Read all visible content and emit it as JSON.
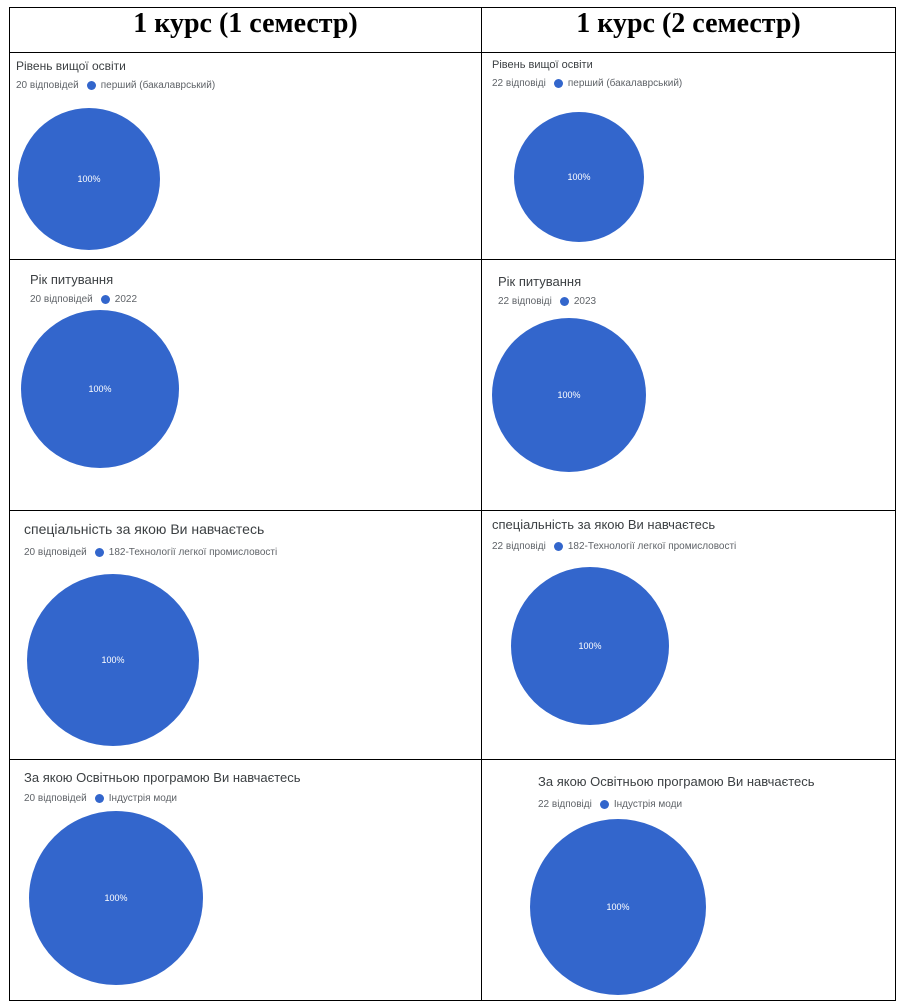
{
  "headers": [
    "1 курс (1 семестр)",
    "1 курс (2 семестр)"
  ],
  "colors": {
    "slice": "#3366cc",
    "text": "#3c4043",
    "muted": "#5f6368"
  },
  "chart_data": [
    {
      "type": "pie",
      "title": "Рівень вищої освіти",
      "responses": "20 відповідей",
      "legend": "перший (бакалаврський)",
      "slices": [
        {
          "label": "перший (бакалаврський)",
          "value": 100
        }
      ],
      "label_text": "100%"
    },
    {
      "type": "pie",
      "title": "Рівень вищої освіти",
      "responses": "22 відповіді",
      "legend": "перший (бакалаврський)",
      "slices": [
        {
          "label": "перший (бакалаврський)",
          "value": 100
        }
      ],
      "label_text": "100%"
    },
    {
      "type": "pie",
      "title": "Рік питування",
      "responses": "20 відповідей",
      "legend": "2022",
      "slices": [
        {
          "label": "2022",
          "value": 100
        }
      ],
      "label_text": "100%"
    },
    {
      "type": "pie",
      "title": "Рік питування",
      "responses": "22 відповіді",
      "legend": "2023",
      "slices": [
        {
          "label": "2023",
          "value": 100
        }
      ],
      "label_text": "100%"
    },
    {
      "type": "pie",
      "title": "спеціальність за якою Ви навчаєтесь",
      "responses": "20 відповідей",
      "legend": "182-Технології легкої промисловості",
      "slices": [
        {
          "label": "182-Технології легкої промисловості",
          "value": 100
        }
      ],
      "label_text": "100%"
    },
    {
      "type": "pie",
      "title": "спеціальність за якою Ви навчаєтесь",
      "responses": "22 відповіді",
      "legend": "182-Технології легкої промисловості",
      "slices": [
        {
          "label": "182-Технології легкої промисловості",
          "value": 100
        }
      ],
      "label_text": "100%"
    },
    {
      "type": "pie",
      "title": "За якою Освітньою програмою Ви навчаєтесь",
      "responses": "20 відповідей",
      "legend": "Індустрія моди",
      "slices": [
        {
          "label": "Індустрія моди",
          "value": 100
        }
      ],
      "label_text": "100%"
    },
    {
      "type": "pie",
      "title": "За якою Освітньою програмою Ви навчаєтесь",
      "responses": "22 відповіді",
      "legend": "Індустрія моди",
      "slices": [
        {
          "label": "Індустрія моди",
          "value": 100
        }
      ],
      "label_text": "100%"
    }
  ]
}
